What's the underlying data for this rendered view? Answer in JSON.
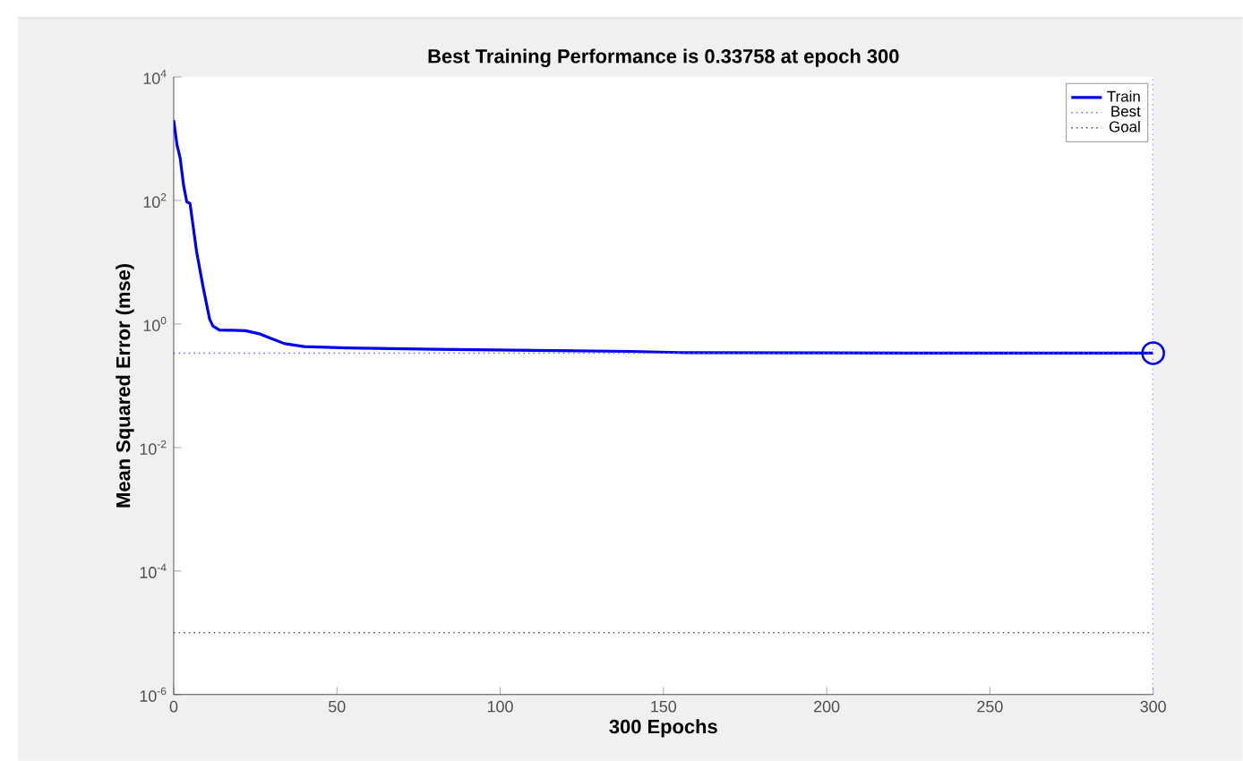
{
  "chart_data": {
    "type": "line",
    "title": "Best Training Performance is 0.33758 at epoch 300",
    "xlabel": "300 Epochs",
    "ylabel": "Mean Squared Error (mse)",
    "xlim": [
      0,
      300
    ],
    "xticks": [
      0,
      50,
      100,
      150,
      200,
      250,
      300
    ],
    "ylim": [
      1e-06,
      10000
    ],
    "log": "y",
    "yticks": [
      {
        "value": 1e-06,
        "label": "10$^{-6}$"
      },
      {
        "value": 0.0001,
        "label": "10$^{-4}$"
      },
      {
        "value": 0.01,
        "label": "10$^{-2}$"
      },
      {
        "value": 1,
        "label": "10$^{0}$"
      },
      {
        "value": 100,
        "label": "10$^{2}$"
      },
      {
        "value": 10000,
        "label": "10$^{4}$"
      }
    ],
    "legend": "top right",
    "series": [
      {
        "name": "Train",
        "line_style": "solid",
        "color": "#0000ee",
        "x": [
          0,
          1,
          2,
          3,
          4,
          5,
          7,
          9,
          11,
          12,
          14,
          18,
          22,
          26,
          30,
          34,
          40,
          53,
          80,
          117,
          140,
          155,
          200,
          250,
          300
        ],
        "values": [
          2000,
          800,
          480,
          180,
          95,
          90,
          15,
          4,
          1.2,
          0.93,
          0.8,
          0.79,
          0.78,
          0.7,
          0.58,
          0.48,
          0.43,
          0.41,
          0.39,
          0.37,
          0.36,
          0.345,
          0.34,
          0.338,
          0.33758
        ]
      },
      {
        "name": "Best",
        "line_style": "dotted",
        "color": "#6a6aff",
        "x": [
          0,
          300
        ],
        "values": [
          0.33758,
          0.33758
        ]
      },
      {
        "name": "Goal",
        "line_style": "dotted",
        "color": "#555555",
        "x": [
          0,
          300
        ],
        "values": [
          1e-05,
          1e-05
        ]
      },
      {
        "type": "scatter",
        "marker": "circle",
        "color": "#0000ee",
        "x": [
          300
        ],
        "values": [
          0.33758
        ]
      }
    ],
    "ref_lines": [
      {
        "axis": "x",
        "value": 300,
        "color": "#6a6aff",
        "line_style": "dotted"
      }
    ]
  }
}
